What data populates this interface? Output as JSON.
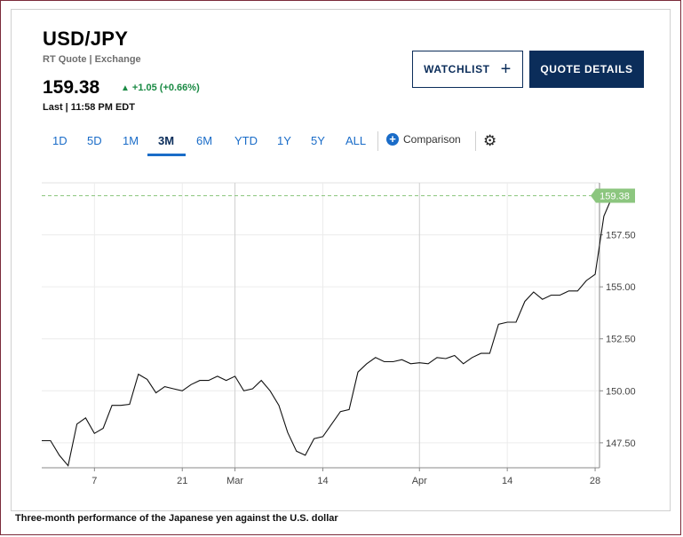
{
  "symbol": "USD/JPY",
  "quote_type": "RT Quote | Exchange",
  "price": "159.38",
  "change": "+1.05 (+0.66%)",
  "last_time": "Last | 11:58 PM EDT",
  "watchlist_label": "WATCHLIST",
  "quote_details_label": "QUOTE DETAILS",
  "ranges": [
    "1D",
    "5D",
    "1M",
    "3M",
    "6M",
    "YTD",
    "1Y",
    "5Y",
    "ALL"
  ],
  "active_range": "3M",
  "comparison_label": "Comparison",
  "caption": "Three-month performance of the Japanese yen against the U.S. dollar",
  "colors": {
    "up": "#1a8a44",
    "brand": "#0b2d5a",
    "link": "#1a6cc8",
    "price_tag": "#8cc67f"
  },
  "chart_data": {
    "type": "line",
    "x_unit": "trading day index (0 = first day shown)",
    "x_ticks": [
      {
        "x": 6,
        "label": "7"
      },
      {
        "x": 16,
        "label": "21"
      },
      {
        "x": 22,
        "label": "Mar"
      },
      {
        "x": 32,
        "label": "14"
      },
      {
        "x": 43,
        "label": "Apr"
      },
      {
        "x": 53,
        "label": "14"
      },
      {
        "x": 63,
        "label": "28"
      }
    ],
    "y_ticks": [
      147.5,
      150.0,
      152.5,
      155.0,
      157.5
    ],
    "y_tick_labels": [
      "147.50",
      "150.00",
      "152.50",
      "155.00",
      "157.50"
    ],
    "ylim": [
      146.3,
      160.0
    ],
    "xlim": [
      0,
      63.5
    ],
    "last_price": 159.38,
    "last_price_label": "159.38",
    "grid": true,
    "y_axis_side": "right",
    "series": [
      {
        "values": [
          147.6,
          147.6,
          146.9,
          146.4,
          148.4,
          148.7,
          147.95,
          148.2,
          149.3,
          149.3,
          149.35,
          150.8,
          150.55,
          149.9,
          150.2,
          150.1,
          150.0,
          150.3,
          150.5,
          150.5,
          150.7,
          150.5,
          150.7,
          150.0,
          150.1,
          150.5,
          150.0,
          149.3,
          148.0,
          147.1,
          146.9,
          147.7,
          147.8,
          148.4,
          149.0,
          149.1,
          150.9,
          151.3,
          151.6,
          151.4,
          151.4,
          151.5,
          151.3,
          151.35,
          151.3,
          151.6,
          151.55,
          151.7,
          151.3,
          151.6,
          151.8,
          151.8,
          153.2,
          153.3,
          153.3,
          154.3,
          154.75,
          154.4,
          154.6,
          154.6,
          154.8,
          154.8,
          155.3,
          155.6,
          158.4,
          159.38
        ]
      }
    ]
  }
}
